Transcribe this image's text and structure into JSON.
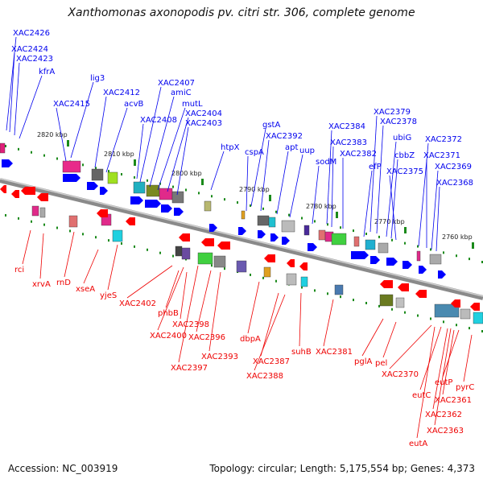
{
  "title": "Xanthomonas axonopodis pv. citri str. 306, complete genome",
  "footer": {
    "accession": "Accession: NC_003919",
    "summary": "Topology: circular; Length: 5,175,554 bp; Genes: 4,373"
  },
  "colors": {
    "forward_label": "#0000ee",
    "reverse_label": "#ee0000",
    "forward_gene": "#0000ff",
    "reverse_gene": "#ff0000",
    "backbone": "#8a8a8a",
    "tick": "#1a8a1a"
  },
  "scale_labels": [
    "2820 kbp",
    "2810 kbp",
    "2800 kbp",
    "2790 kbp",
    "2780 kbp",
    "2770 kbp",
    "2760 kbp"
  ],
  "forward_labels": [
    "XAC2426",
    "XAC2424",
    "XAC2423",
    "kfrA",
    "lig3",
    "XAC2415",
    "XAC2412",
    "acvB",
    "XAC2407",
    "amiC",
    "mutL",
    "XAC2408",
    "XAC2404",
    "XAC2403",
    "htpX",
    "gstA",
    "XAC2392",
    "cspA",
    "apt",
    "uup",
    "XAC2384",
    "sodM",
    "XAC2383",
    "XAC2382",
    "XAC2379",
    "XAC2378",
    "ubiG",
    "efP",
    "cbbZ",
    "XAC2375",
    "XAC2372",
    "XAC2371",
    "XAC2369",
    "XAC2368"
  ],
  "reverse_labels": [
    "rci",
    "xrvA",
    "rnD",
    "xseA",
    "yjeS",
    "XAC2402",
    "phbB",
    "XAC2398",
    "XAC2400",
    "XAC2396",
    "XAC2393",
    "XAC2397",
    "dbpA",
    "XAC2387",
    "XAC2388",
    "suhB",
    "XAC2381",
    "pglA",
    "pel",
    "XAC2370",
    "eutC",
    "eutP",
    "pyrC",
    "XAC2361",
    "XAC2362",
    "XAC2363",
    "eutA"
  ]
}
